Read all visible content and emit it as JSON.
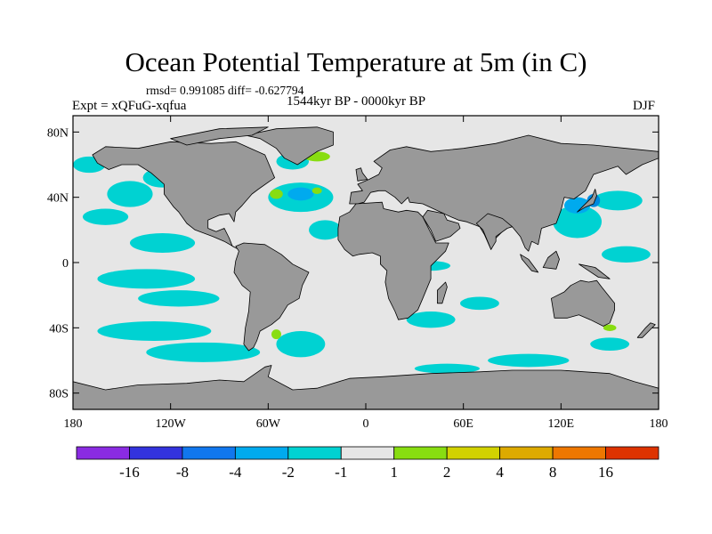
{
  "title": "Ocean Potential Temperature at 5m (in C)",
  "stats_line": "rmsd= 0.991085 diff= -0.627794",
  "experiment_label": "Expt = xQFuG-xqfua",
  "period_label": "1544kyr BP - 0000kyr BP",
  "season_label": "DJF",
  "map": {
    "projection": "cylindrical equidistant",
    "lon_range": [
      -180,
      180
    ],
    "lat_range": [
      -90,
      90
    ],
    "x_ticks": [
      {
        "lon": -180,
        "label": "180"
      },
      {
        "lon": -120,
        "label": "120W"
      },
      {
        "lon": -60,
        "label": "60W"
      },
      {
        "lon": 0,
        "label": "0"
      },
      {
        "lon": 60,
        "label": "60E"
      },
      {
        "lon": 120,
        "label": "120E"
      },
      {
        "lon": 180,
        "label": "180"
      }
    ],
    "y_ticks": [
      {
        "lat": 80,
        "label": "80N"
      },
      {
        "lat": 40,
        "label": "40N"
      },
      {
        "lat": 0,
        "label": "0"
      },
      {
        "lat": -40,
        "label": "40S"
      },
      {
        "lat": -80,
        "label": "80S"
      }
    ],
    "colors": {
      "ocean_background": "#e6e6e6",
      "land": "#999999",
      "coastline": "#000000"
    },
    "anomaly_regions": [
      {
        "color": "#00d2d2",
        "lon": -145,
        "lat": 42,
        "rlon": 14,
        "rlat": 8
      },
      {
        "color": "#00d2d2",
        "lon": -125,
        "lat": 52,
        "rlon": 12,
        "rlat": 6
      },
      {
        "color": "#00d2d2",
        "lon": -160,
        "lat": 28,
        "rlon": 14,
        "rlat": 5
      },
      {
        "color": "#00d2d2",
        "lon": -125,
        "lat": 12,
        "rlon": 20,
        "rlat": 6
      },
      {
        "color": "#00d2d2",
        "lon": -135,
        "lat": -10,
        "rlon": 30,
        "rlat": 6
      },
      {
        "color": "#00d2d2",
        "lon": -115,
        "lat": -22,
        "rlon": 25,
        "rlat": 5
      },
      {
        "color": "#00d2d2",
        "lon": -130,
        "lat": -42,
        "rlon": 35,
        "rlat": 6
      },
      {
        "color": "#00d2d2",
        "lon": -100,
        "lat": -55,
        "rlon": 35,
        "rlat": 6
      },
      {
        "color": "#00d2d2",
        "lon": -40,
        "lat": 40,
        "rlon": 20,
        "rlat": 9
      },
      {
        "color": "#00d2d2",
        "lon": -45,
        "lat": 62,
        "rlon": 10,
        "rlat": 5
      },
      {
        "color": "#00d2d2",
        "lon": -25,
        "lat": 20,
        "rlon": 10,
        "rlat": 6
      },
      {
        "color": "#00d2d2",
        "lon": -40,
        "lat": -50,
        "rlon": 15,
        "rlat": 8
      },
      {
        "color": "#00d2d2",
        "lon": 40,
        "lat": -35,
        "rlon": 15,
        "rlat": 5
      },
      {
        "color": "#00d2d2",
        "lon": 70,
        "lat": -25,
        "rlon": 12,
        "rlat": 4
      },
      {
        "color": "#00d2d2",
        "lon": 40,
        "lat": -2,
        "rlon": 12,
        "rlat": 3
      },
      {
        "color": "#00d2d2",
        "lon": 130,
        "lat": 25,
        "rlon": 15,
        "rlat": 10
      },
      {
        "color": "#00d2d2",
        "lon": 155,
        "lat": 38,
        "rlon": 15,
        "rlat": 6
      },
      {
        "color": "#00d2d2",
        "lon": 160,
        "lat": 5,
        "rlon": 15,
        "rlat": 5
      },
      {
        "color": "#00d2d2",
        "lon": 100,
        "lat": -60,
        "rlon": 25,
        "rlat": 4
      },
      {
        "color": "#00d2d2",
        "lon": 50,
        "lat": -65,
        "rlon": 20,
        "rlat": 3
      },
      {
        "color": "#00d2d2",
        "lon": 150,
        "lat": -50,
        "rlon": 12,
        "rlat": 4
      },
      {
        "color": "#00d2d2",
        "lon": -170,
        "lat": 60,
        "rlon": 10,
        "rlat": 5
      },
      {
        "color": "#00aaee",
        "lon": -40,
        "lat": 42,
        "rlon": 8,
        "rlat": 4
      },
      {
        "color": "#00aaee",
        "lon": 130,
        "lat": 35,
        "rlon": 8,
        "rlat": 5
      },
      {
        "color": "#0088dd",
        "lon": 140,
        "lat": 38,
        "rlon": 4,
        "rlat": 4
      },
      {
        "color": "#88dd11",
        "lon": -55,
        "lat": 42,
        "rlon": 4,
        "rlat": 3
      },
      {
        "color": "#88dd11",
        "lon": -30,
        "lat": 44,
        "rlon": 3,
        "rlat": 2
      },
      {
        "color": "#88dd11",
        "lon": -30,
        "lat": 65,
        "rlon": 8,
        "rlat": 3
      },
      {
        "color": "#88dd11",
        "lon": 150,
        "lat": -40,
        "rlon": 4,
        "rlat": 2
      },
      {
        "color": "#88dd11",
        "lon": -55,
        "lat": -44,
        "rlon": 3,
        "rlat": 3
      }
    ]
  },
  "colorbar": {
    "colors": [
      "#8a2be2",
      "#3333dd",
      "#1177ee",
      "#00aaee",
      "#00d2d2",
      "#e6e6e6",
      "#88dd11",
      "#d2d200",
      "#ddaa00",
      "#ee7700",
      "#dd3300"
    ],
    "labels": [
      "-16",
      "-8",
      "-4",
      "-2",
      "-1",
      "1",
      "2",
      "4",
      "8",
      "16"
    ]
  }
}
